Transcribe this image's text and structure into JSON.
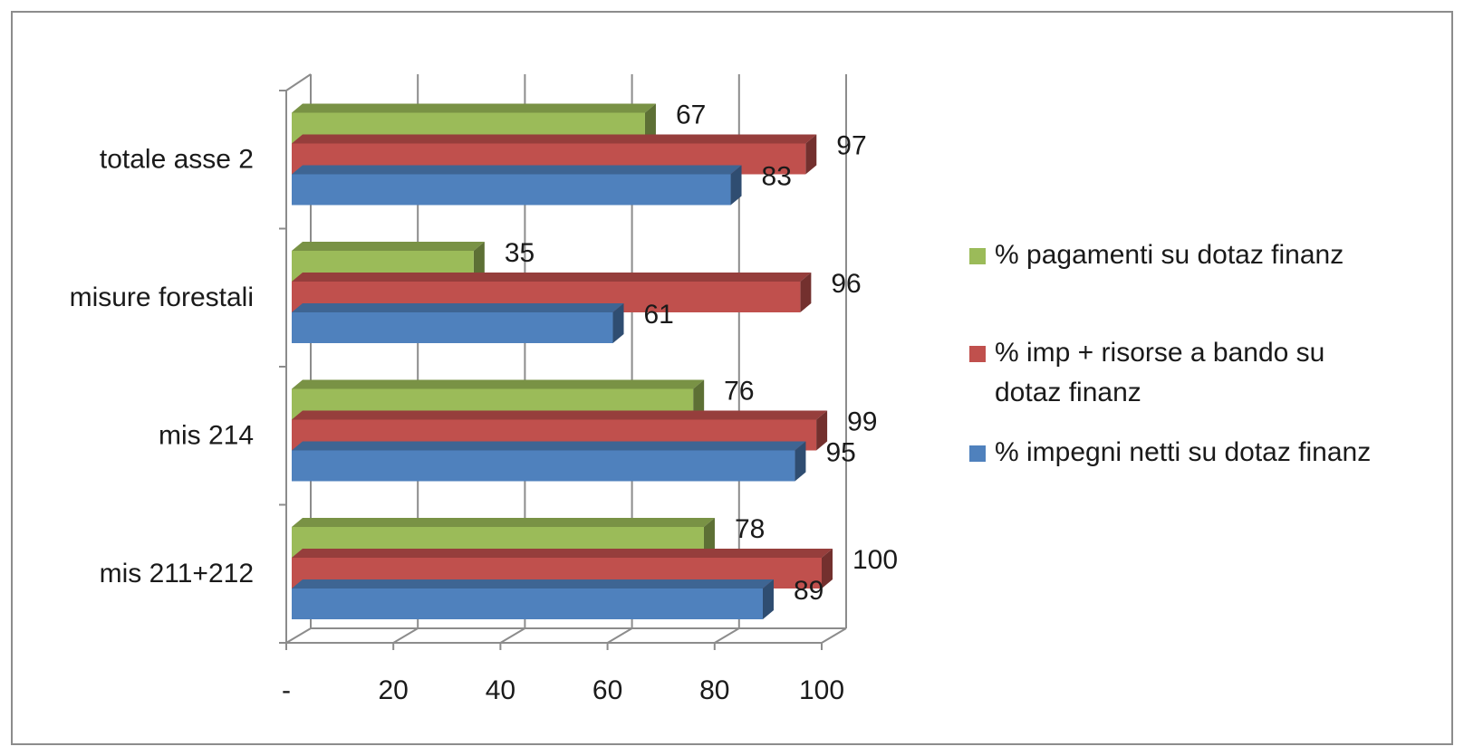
{
  "chart_data": {
    "type": "bar",
    "orientation": "horizontal",
    "style": "3d-clustered",
    "categories": [
      "mis 211+212",
      "mis 214",
      "misure forestali",
      "totale asse 2"
    ],
    "series": [
      {
        "name": "% impegni netti su dotaz finanz",
        "color": "#4f81bd",
        "values": [
          89,
          95,
          61,
          83
        ]
      },
      {
        "name": "% imp + risorse a bando su dotaz finanz",
        "color": "#c0504d",
        "values": [
          100,
          99,
          96,
          97
        ]
      },
      {
        "name": "% pagamenti su dotaz finanz",
        "color": "#9bbb59",
        "values": [
          78,
          76,
          35,
          67
        ]
      }
    ],
    "x_ticks": [
      "-",
      "20",
      "40",
      "60",
      "80",
      "100"
    ],
    "xlim": [
      0,
      100
    ],
    "grid": true,
    "legend_position": "right",
    "legend_order": [
      2,
      1,
      0
    ]
  }
}
